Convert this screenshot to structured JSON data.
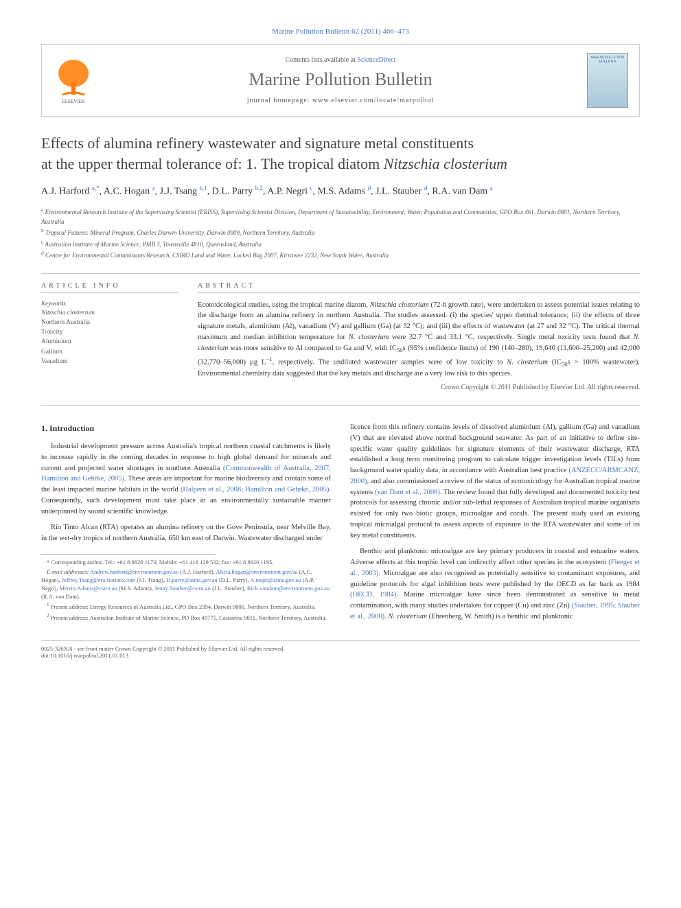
{
  "citation": "Marine Pollution Bulletin 62 (2011) 466–473",
  "header": {
    "contents_prefix": "Contents lists available at ",
    "contents_link": "ScienceDirect",
    "journal_name": "Marine Pollution Bulletin",
    "homepage_prefix": "journal homepage: ",
    "homepage_url": "www.elsevier.com/locate/marpolbul",
    "cover_title": "MARINE POLLUTION BULLETIN"
  },
  "title_line1": "Effects of alumina refinery wastewater and signature metal constituents",
  "title_line2": "at the upper thermal tolerance of: 1. The tropical diatom ",
  "title_species": "Nitzschia closterium",
  "authors_html": "A.J. Harford <sup>a,*</sup>, A.C. Hogan <sup>a</sup>, J.J. Tsang <sup>b,1</sup>, D.L. Parry <sup>b,2</sup>, A.P. Negri <sup>c</sup>, M.S. Adams <sup>d</sup>, J.L. Stauber <sup>d</sup>, R.A. van Dam <sup>a</sup>",
  "affiliations": [
    "a Environmental Research Institute of the Supervising Scientist (ERISS), Supervising Scientist Division, Department of Sustainability, Environment, Water, Population and Communities, GPO Box 461, Darwin 0801, Northern Territory, Australia",
    "b Tropical Futures: Mineral Program, Charles Darwin University, Darwin 0909, Northern Territory, Australia",
    "c Australian Institute of Marine Science, PMB 3, Townsville 4810, Queensland, Australia",
    "d Centre for Environmental Contaminants Research, CSIRO Land and Water, Locked Bag 2007, Kirrawee 2232, New South Wales, Australia"
  ],
  "article_info_heading": "ARTICLE INFO",
  "keywords_label": "Keywords:",
  "keywords": [
    {
      "text": "Nitzschia closterium",
      "italic": true
    },
    {
      "text": "Northern Australia",
      "italic": false
    },
    {
      "text": "Toxicity",
      "italic": false
    },
    {
      "text": "Aluminium",
      "italic": false
    },
    {
      "text": "Gallium",
      "italic": false
    },
    {
      "text": "Vanadium",
      "italic": false
    }
  ],
  "abstract_heading": "ABSTRACT",
  "abstract_text": "Ecotoxicological studies, using the tropical marine diatom, <em>Nitzschia closterium</em> (72-h growth rate), were undertaken to assess potential issues relating to the discharge from an alumina refinery in northern Australia. The studies assessed: (i) the species' upper thermal tolerance; (ii) the effects of three signature metals, aluminium (Al), vanadium (V) and gallium (Ga) (at 32 °C); and (iii) the effects of wastewater (at 27 and 32 °C). The critical thermal maximum and median inhibition temperature for <em>N. closterium</em> were 32.7 °C and 33.1 °C, respectively. Single metal toxicity tests found that <em>N. closterium</em> was more sensitive to Al compared to Ga and V, with IC<sub>50</sub>s (95% confidence limits) of 190 (140–280), 19,640 (11,600–25,200) and 42,000 (32,770–56,000) µg L<sup>−1</sup>, respectively. The undiluted wastewater samples were of low toxicity to <em>N. closterium</em> (IC<sub>50</sub>s > 100% wastewater). Environmental chemistry data suggested that the key metals and discharge are a very low risk to this species.",
  "copyright": "Crown Copyright © 2011 Published by Elsevier Ltd. All rights reserved.",
  "body": {
    "section_number": "1.",
    "section_title": "Introduction",
    "left": [
      "Industrial development pressure across Australia's tropical northern coastal catchments is likely to increase rapidly in the coming decades in response to high global demand for minerals and current and projected water shortages in southern Australia <span class='ref-link'>(Commonwealth of Australia, 2007; Hamilton and Gehrke, 2005)</span>. These areas are important for marine biodiversity and contain some of the least impacted marine habitats in the world <span class='ref-link'>(Halpern et al., 2008; Hamilton and Gehrke, 2005)</span>. Consequently, such development must take place in an environmentally sustainable manner underpinned by sound scientific knowledge.",
      "Rio Tinto Alcan (RTA) operates an alumina refinery on the Gove Peninsula, near Melville Bay, in the wet-dry tropics of northern Australia, 650 km east of Darwin. Wastewater discharged under"
    ],
    "right": [
      "licence from this refinery contains levels of dissolved aluminium (Al), gallium (Ga) and vanadium (V) that are elevated above normal background seawater. As part of an initiative to define site-specific water quality guidelines for signature elements of their wastewater discharge, RTA established a long term monitoring program to calculate trigger investigation levels (TILs) from background water quality data, in accordance with Australian best practice <span class='ref-link'>(ANZECC/ARMCANZ, 2000)</span>, and also commissioned a review of the status of ecotoxicology for Australian tropical marine systems <span class='ref-link'>(van Dam et al., 2008)</span>. The review found that fully developed and documented toxicity test protocols for assessing chronic and/or sub-lethal responses of Australian tropical marine organisms existed for only two biotic groups, microalgae and corals. The present study used an existing tropical microalgal protocol to assess aspects of exposure to the RTA wastewater and some of its key metal constituents.",
      "Benthic and planktonic microalgae are key primary producers in coastal and estuarine waters. Adverse effects at this trophic level can indirectly affect other species in the ecosystem <span class='ref-link'>(Fleeger et al., 2003)</span>. Microalgae are also recognised as potentially sensitive to contaminant exposures, and guideline protocols for algal inhibition tests were published by the OECD as far back as 1984 <span class='ref-link'>(OECD, 1984)</span>. Marine microalgae have since been demonstrated as sensitive to metal contamination, with many studies undertaken for copper (Cu) and zinc (Zn) <span class='ref-link'>(Stauber, 1995; Stauber et al., 2000)</span>. <em>N. closterium</em> (Ehrenberg, W. Smith) is a benthic and planktonic"
    ]
  },
  "footnotes": {
    "corresponding": "* Corresponding author. Tel.: +61 8 8920 1173; Mobile: +61 418 129 532; fax: +61 8 8920 1195.",
    "emails_label": "E-mail addresses:",
    "emails": " <a>Andrew.harford@environment.gov.au</a> (A.J. Harford), <a>Alicia.hogan@environment.gov.au</a> (A.C. Hogan), <a>Jeffrey.Tsang@era.riotinto.com</a> (J.J. Tsang), <a>D.parry@aims.gov.au</a> (D.L. Parry), <a>A.negri@aims.gov.au</a> (A.P. Negri), <a>Merrin.Adams@csiro.au</a> (M.S. Adams), <a>Jenny.Stauber@csiro.au</a> (J.L. Stauber), <a>Rick.vandam@environment.gov.au</a> (R.A. van Dam).",
    "note1": "1 Present address: Energy Resources of Australia Ltd., GPO Box 2394, Darwin 0800, Northern Territory, Australia.",
    "note2": "2 Present address: Australian Institute of Marine Science, PO Box 41775, Casuarina 0811, Northern Territory, Australia."
  },
  "footer": {
    "issn_line": "0025-326X/$ - see front matter Crown Copyright © 2011 Published by Elsevier Ltd. All rights reserved.",
    "doi": "doi:10.1016/j.marpolbul.2011.01.013"
  },
  "colors": {
    "link": "#4773b8",
    "text": "#333333",
    "muted": "#555555",
    "border": "#cccccc",
    "elsevier_orange": "#ff7a00"
  }
}
